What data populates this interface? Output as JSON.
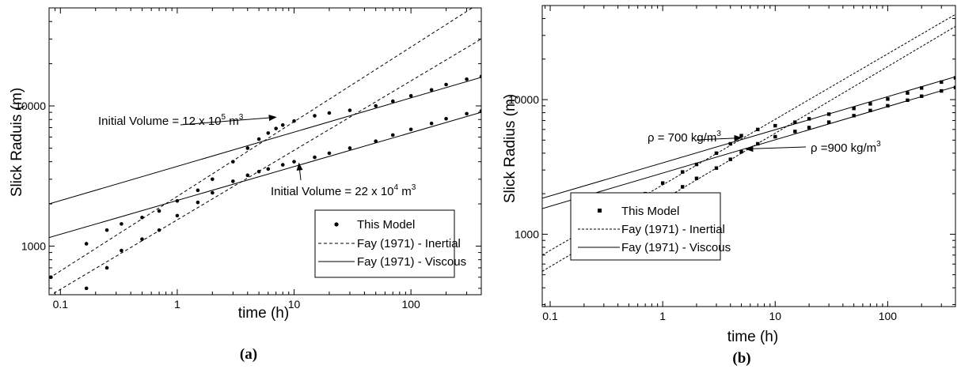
{
  "chart_data": [
    {
      "type": "line",
      "panel_label": "(a)",
      "xlabel": "time (h)",
      "ylabel": "Slick Raduis (m)",
      "xscale": "log",
      "yscale": "log",
      "xlim": [
        0.08,
        400
      ],
      "ylim": [
        450,
        50000
      ],
      "x_ticks": [
        {
          "value": 0.1,
          "label": "0.1"
        },
        {
          "value": 1,
          "label": "1"
        },
        {
          "value": 10,
          "label": "10"
        },
        {
          "value": 100,
          "label": "100"
        }
      ],
      "y_ticks": [
        {
          "value": 1000,
          "label": "1000"
        },
        {
          "value": 10000,
          "label": "10000"
        }
      ],
      "grid": false,
      "legend": {
        "placement": "bottom-right",
        "entries": [
          {
            "label": "This Model",
            "marker": "dot"
          },
          {
            "label": "Fay (1971) - Inertial",
            "line": "dashed"
          },
          {
            "label": "Fay (1971) - Viscous",
            "line": "solid"
          }
        ]
      },
      "annotations": [
        {
          "text": "Initial Volume = 12 x 10",
          "sup": "5",
          "unit": " m",
          "unit_sup": "3",
          "points_to": {
            "x": 7,
            "y": 8300
          }
        },
        {
          "text": "Initial Volume = 22 x 10",
          "sup": "4",
          "unit": " m",
          "unit_sup": "3",
          "points_to": {
            "x": 11,
            "y": 3900
          }
        }
      ],
      "series": [
        {
          "style": "dashed",
          "x": [
            0.08,
            400
          ],
          "y": [
            590,
            55000
          ]
        },
        {
          "style": "dashed",
          "x": [
            0.08,
            400
          ],
          "y": [
            440,
            30000
          ]
        },
        {
          "style": "solid",
          "x": [
            0.08,
            400
          ],
          "y": [
            2000,
            16000
          ]
        },
        {
          "style": "solid",
          "x": [
            0.08,
            400
          ],
          "y": [
            1150,
            9000
          ]
        },
        {
          "style": "model",
          "x": [
            0.083,
            0.167,
            0.25,
            0.333,
            0.5,
            0.7,
            1,
            1.5,
            2,
            3,
            4,
            5,
            6,
            7,
            8,
            10,
            15,
            20,
            30,
            50,
            70,
            100,
            150,
            200,
            300,
            400
          ],
          "y": [
            600,
            1040,
            1300,
            1440,
            1600,
            1780,
            2100,
            2500,
            3000,
            4000,
            5000,
            5800,
            6400,
            6900,
            7300,
            7800,
            8500,
            8900,
            9300,
            10000,
            10800,
            11800,
            13000,
            14200,
            15500,
            16200
          ]
        },
        {
          "style": "model",
          "x": [
            0.167,
            0.25,
            0.333,
            0.5,
            0.7,
            1,
            1.5,
            2,
            3,
            4,
            5,
            6,
            8,
            10,
            15,
            20,
            30,
            50,
            70,
            100,
            150,
            200,
            300,
            400
          ],
          "y": [
            500,
            700,
            930,
            1120,
            1300,
            1650,
            2050,
            2400,
            2900,
            3200,
            3400,
            3550,
            3800,
            4000,
            4300,
            4600,
            5000,
            5600,
            6200,
            6800,
            7500,
            8100,
            8800,
            9200
          ]
        }
      ]
    },
    {
      "type": "line",
      "panel_label": "(b)",
      "xlabel": "time (h)",
      "ylabel": "Slick Radius (m)",
      "xscale": "log",
      "yscale": "log",
      "xlim": [
        0.085,
        400
      ],
      "ylim": [
        290,
        50000
      ],
      "x_ticks": [
        {
          "value": 0.1,
          "label": "0.1"
        },
        {
          "value": 1,
          "label": "1"
        },
        {
          "value": 10,
          "label": "10"
        },
        {
          "value": 100,
          "label": "100"
        }
      ],
      "y_ticks": [
        {
          "value": 1000,
          "label": "1000"
        },
        {
          "value": 10000,
          "label": "10000"
        }
      ],
      "grid": false,
      "legend": {
        "placement": "bottom-right",
        "entries": [
          {
            "label": "This Model",
            "marker": "square"
          },
          {
            "label": "Fay (1971) - Inertial",
            "line": "dashed"
          },
          {
            "label": "Fay (1971) - Viscous",
            "line": "solid"
          }
        ]
      },
      "annotations": [
        {
          "text": "ρ = 700 kg/m",
          "sup": "3",
          "points_to": {
            "x": 5,
            "y": 5200
          }
        },
        {
          "text": "ρ =900 kg/m",
          "sup": "3",
          "points_to": {
            "x": 5.5,
            "y": 4300
          }
        }
      ],
      "series": [
        {
          "style": "dashed",
          "x": [
            0.085,
            400
          ],
          "y": [
            700,
            43000
          ]
        },
        {
          "style": "dashed",
          "x": [
            0.085,
            400
          ],
          "y": [
            530,
            35000
          ]
        },
        {
          "style": "solid",
          "x": [
            0.085,
            400
          ],
          "y": [
            1850,
            14800
          ]
        },
        {
          "style": "solid",
          "x": [
            0.085,
            400
          ],
          "y": [
            1550,
            12500
          ]
        },
        {
          "style": "model",
          "x": [
            0.167,
            0.25,
            0.333,
            0.5,
            0.7,
            1,
            1.5,
            2,
            3,
            4,
            5,
            7,
            10,
            15,
            20,
            30,
            50,
            70,
            100,
            150,
            200,
            300,
            400
          ],
          "y": [
            700,
            1100,
            1350,
            1700,
            2000,
            2400,
            2900,
            3300,
            4000,
            4700,
            5400,
            6000,
            6400,
            6800,
            7200,
            7800,
            8600,
            9300,
            10100,
            11200,
            12200,
            13500,
            14500
          ]
        },
        {
          "style": "model",
          "x": [
            0.25,
            0.333,
            0.5,
            0.7,
            1,
            1.5,
            2,
            3,
            4,
            5,
            7,
            10,
            15,
            20,
            30,
            50,
            70,
            100,
            150,
            200,
            300,
            400
          ],
          "y": [
            850,
            1100,
            1350,
            1600,
            1900,
            2250,
            2600,
            3100,
            3600,
            4100,
            4700,
            5300,
            5800,
            6200,
            6800,
            7600,
            8300,
            9000,
            9900,
            10600,
            11600,
            12300
          ]
        }
      ]
    }
  ]
}
